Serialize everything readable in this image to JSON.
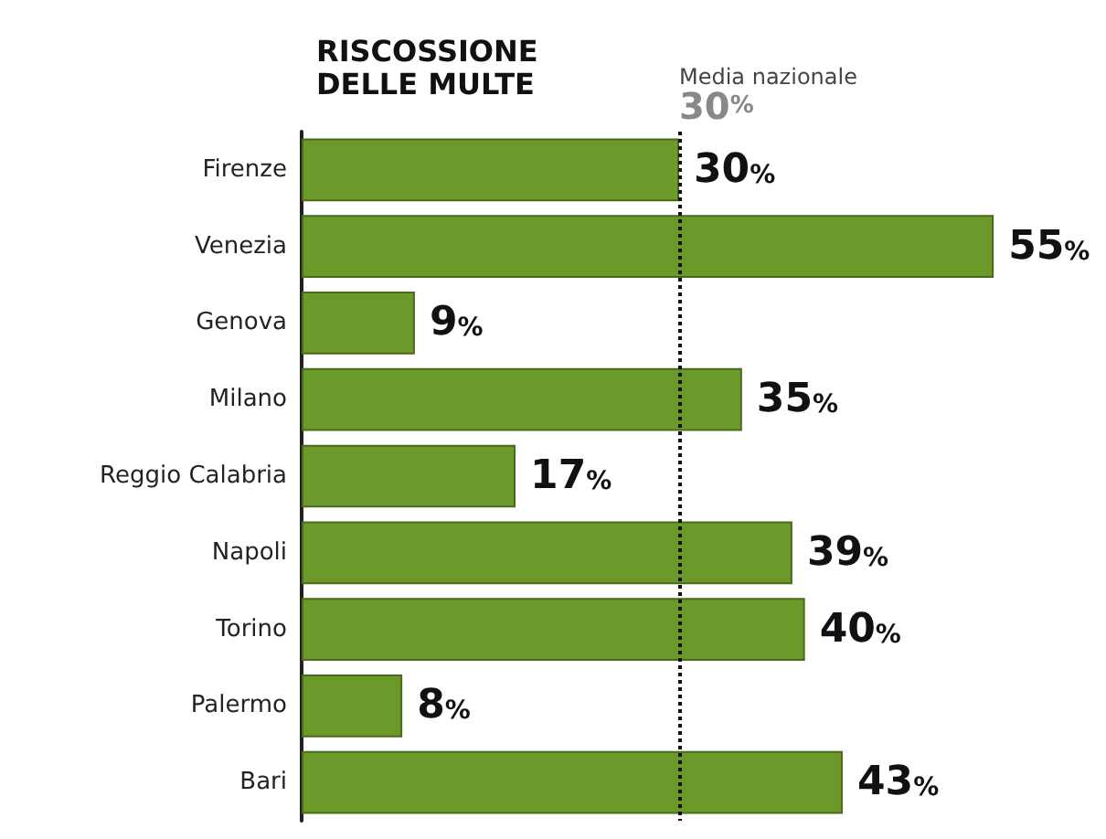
{
  "chart_data": {
    "type": "bar",
    "orientation": "horizontal",
    "title": "RISCOSSIONE\nDELLE MULTE",
    "categories": [
      "Firenze",
      "Venezia",
      "Genova",
      "Milano",
      "Reggio Calabria",
      "Napoli",
      "Torino",
      "Palermo",
      "Bari"
    ],
    "values": [
      30,
      55,
      9,
      35,
      17,
      39,
      40,
      8,
      43
    ],
    "value_labels": [
      "30%",
      "55%",
      "9%",
      "35%",
      "17%",
      "39%",
      "40%",
      "8%",
      "43%"
    ],
    "color": "#6b9a2a",
    "ref_lines": [
      {
        "axis": "x",
        "value": 30,
        "label": "Media nazionale\n30%",
        "color": "#111111",
        "line_style": "dotted"
      }
    ]
  }
}
